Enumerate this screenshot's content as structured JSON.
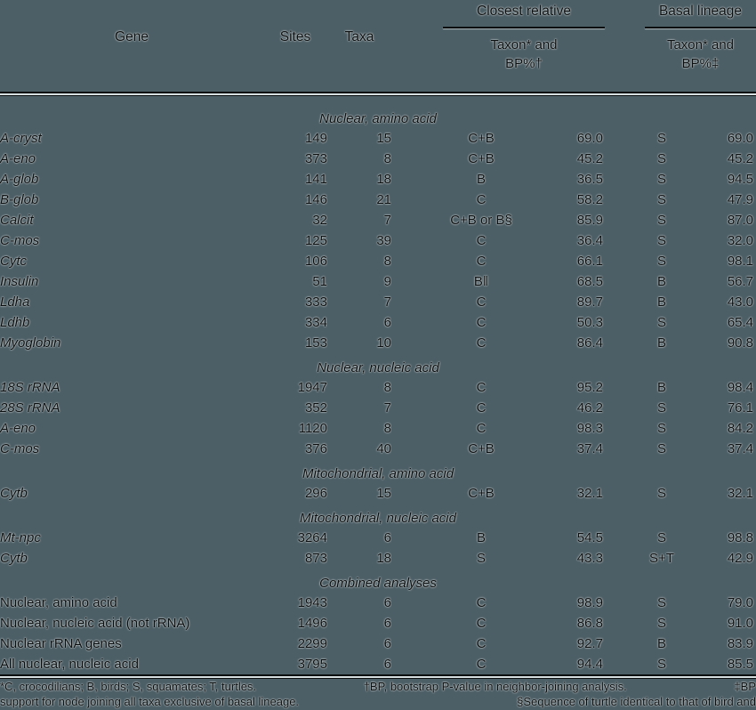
{
  "colors": {
    "background": "#4d5f66",
    "ink": "#0c0f10"
  },
  "header": {
    "gene": "Gene",
    "sites": "Sites",
    "taxa": "Taxa",
    "closest_relative": {
      "title": "Closest relative",
      "sub_line1": "Taxon* and",
      "sub_line2": "BP%†"
    },
    "basal_lineage": {
      "title": "Basal lineage",
      "sub_line1": "Taxon* and",
      "sub_line2": "BP%‡"
    }
  },
  "sections": [
    {
      "label": "Nuclear, amino acid",
      "italic_genes": true,
      "rows": [
        {
          "gene": "A-cryst",
          "sites": "149",
          "taxa": "15",
          "cr_taxon": "C+B",
          "cr_bp": "69.0",
          "bl_taxon": "S",
          "bl_bp": "69.0"
        },
        {
          "gene": "A-eno",
          "sites": "373",
          "taxa": "8",
          "cr_taxon": "C+B",
          "cr_bp": "45.2",
          "bl_taxon": "S",
          "bl_bp": "45.2"
        },
        {
          "gene": "A-glob",
          "sites": "141",
          "taxa": "18",
          "cr_taxon": "B",
          "cr_bp": "36.5",
          "bl_taxon": "S",
          "bl_bp": "94.5"
        },
        {
          "gene": "B-glob",
          "sites": "146",
          "taxa": "21",
          "cr_taxon": "C",
          "cr_bp": "58.2",
          "bl_taxon": "S",
          "bl_bp": "47.9"
        },
        {
          "gene": "Calcit",
          "sites": "32",
          "taxa": "7",
          "cr_taxon": "C+B or B§",
          "cr_bp": "85.9",
          "bl_taxon": "S",
          "bl_bp": "87.0"
        },
        {
          "gene": "C-mos",
          "sites": "125",
          "taxa": "39",
          "cr_taxon": "C",
          "cr_bp": "36.4",
          "bl_taxon": "S",
          "bl_bp": "32.0"
        },
        {
          "gene": "Cytc",
          "sites": "106",
          "taxa": "8",
          "cr_taxon": "C",
          "cr_bp": "66.1",
          "bl_taxon": "S",
          "bl_bp": "98.1"
        },
        {
          "gene": "Insulin",
          "sites": "51",
          "taxa": "9",
          "cr_taxon": "B‖",
          "cr_bp": "68.5",
          "bl_taxon": "B",
          "bl_bp": "56.7"
        },
        {
          "gene": "Ldha",
          "sites": "333",
          "taxa": "7",
          "cr_taxon": "C",
          "cr_bp": "89.7",
          "bl_taxon": "B",
          "bl_bp": "43.0"
        },
        {
          "gene": "Ldhb",
          "sites": "334",
          "taxa": "6",
          "cr_taxon": "C",
          "cr_bp": "50.3",
          "bl_taxon": "S",
          "bl_bp": "65.4"
        },
        {
          "gene": "Myoglobin",
          "sites": "153",
          "taxa": "10",
          "cr_taxon": "C",
          "cr_bp": "86.4",
          "bl_taxon": "B",
          "bl_bp": "90.8"
        }
      ]
    },
    {
      "label": "Nuclear, nucleic acid",
      "italic_genes": true,
      "rows": [
        {
          "gene": "18S rRNA",
          "sites": "1947",
          "taxa": "8",
          "cr_taxon": "C",
          "cr_bp": "95.2",
          "bl_taxon": "B",
          "bl_bp": "98.4"
        },
        {
          "gene": "28S rRNA",
          "sites": "352",
          "taxa": "7",
          "cr_taxon": "C",
          "cr_bp": "46.2",
          "bl_taxon": "S",
          "bl_bp": "76.1"
        },
        {
          "gene": "A-eno",
          "sites": "1120",
          "taxa": "8",
          "cr_taxon": "C",
          "cr_bp": "98.3",
          "bl_taxon": "S",
          "bl_bp": "84.2"
        },
        {
          "gene": "C-mos",
          "sites": "376",
          "taxa": "40",
          "cr_taxon": "C+B",
          "cr_bp": "37.4",
          "bl_taxon": "S",
          "bl_bp": "37.4"
        }
      ]
    },
    {
      "label": "Mitochondrial, amino acid",
      "italic_genes": true,
      "rows": [
        {
          "gene": "Cytb",
          "sites": "296",
          "taxa": "15",
          "cr_taxon": "C+B",
          "cr_bp": "32.1",
          "bl_taxon": "S",
          "bl_bp": "32.1"
        }
      ]
    },
    {
      "label": "Mitochondrial, nucleic acid",
      "italic_genes": true,
      "rows": [
        {
          "gene": "Mt-npc",
          "sites": "3264",
          "taxa": "6",
          "cr_taxon": "B",
          "cr_bp": "54.5",
          "bl_taxon": "S",
          "bl_bp": "98.8"
        },
        {
          "gene": "Cytb",
          "sites": "873",
          "taxa": "18",
          "cr_taxon": "S",
          "cr_bp": "43.3",
          "bl_taxon": "S+T",
          "bl_bp": "42.9"
        }
      ]
    },
    {
      "label": "Combined analyses",
      "italic_genes": false,
      "rows": [
        {
          "gene": "Nuclear, amino acid",
          "sites": "1943",
          "taxa": "6",
          "cr_taxon": "C",
          "cr_bp": "98.9",
          "bl_taxon": "S",
          "bl_bp": "79.0"
        },
        {
          "gene": "Nuclear, nucleic acid (not rRNA)",
          "sites": "1496",
          "taxa": "6",
          "cr_taxon": "C",
          "cr_bp": "86.8",
          "bl_taxon": "S",
          "bl_bp": "91.0"
        },
        {
          "gene": "Nuclear rRNA genes",
          "sites": "2299",
          "taxa": "6",
          "cr_taxon": "C",
          "cr_bp": "92.7",
          "bl_taxon": "B",
          "bl_bp": "83.9"
        },
        {
          "gene": "All nuclear, nucleic acid",
          "sites": "3795",
          "taxa": "6",
          "cr_taxon": "C",
          "cr_bp": "94.4",
          "bl_taxon": "S",
          "bl_bp": "85.5"
        }
      ]
    }
  ],
  "footnotes": {
    "line1": [
      "*C, crocodilians; B, birds; S, squamates; T, turtles.",
      "†BP, bootstrap P-value in neighbor-joining analysis.",
      "‡BP"
    ],
    "line2": [
      "support for node joining all taxa exclusive of basal lineage.",
      "§Sequence of turtle identical to that of bird and"
    ]
  }
}
